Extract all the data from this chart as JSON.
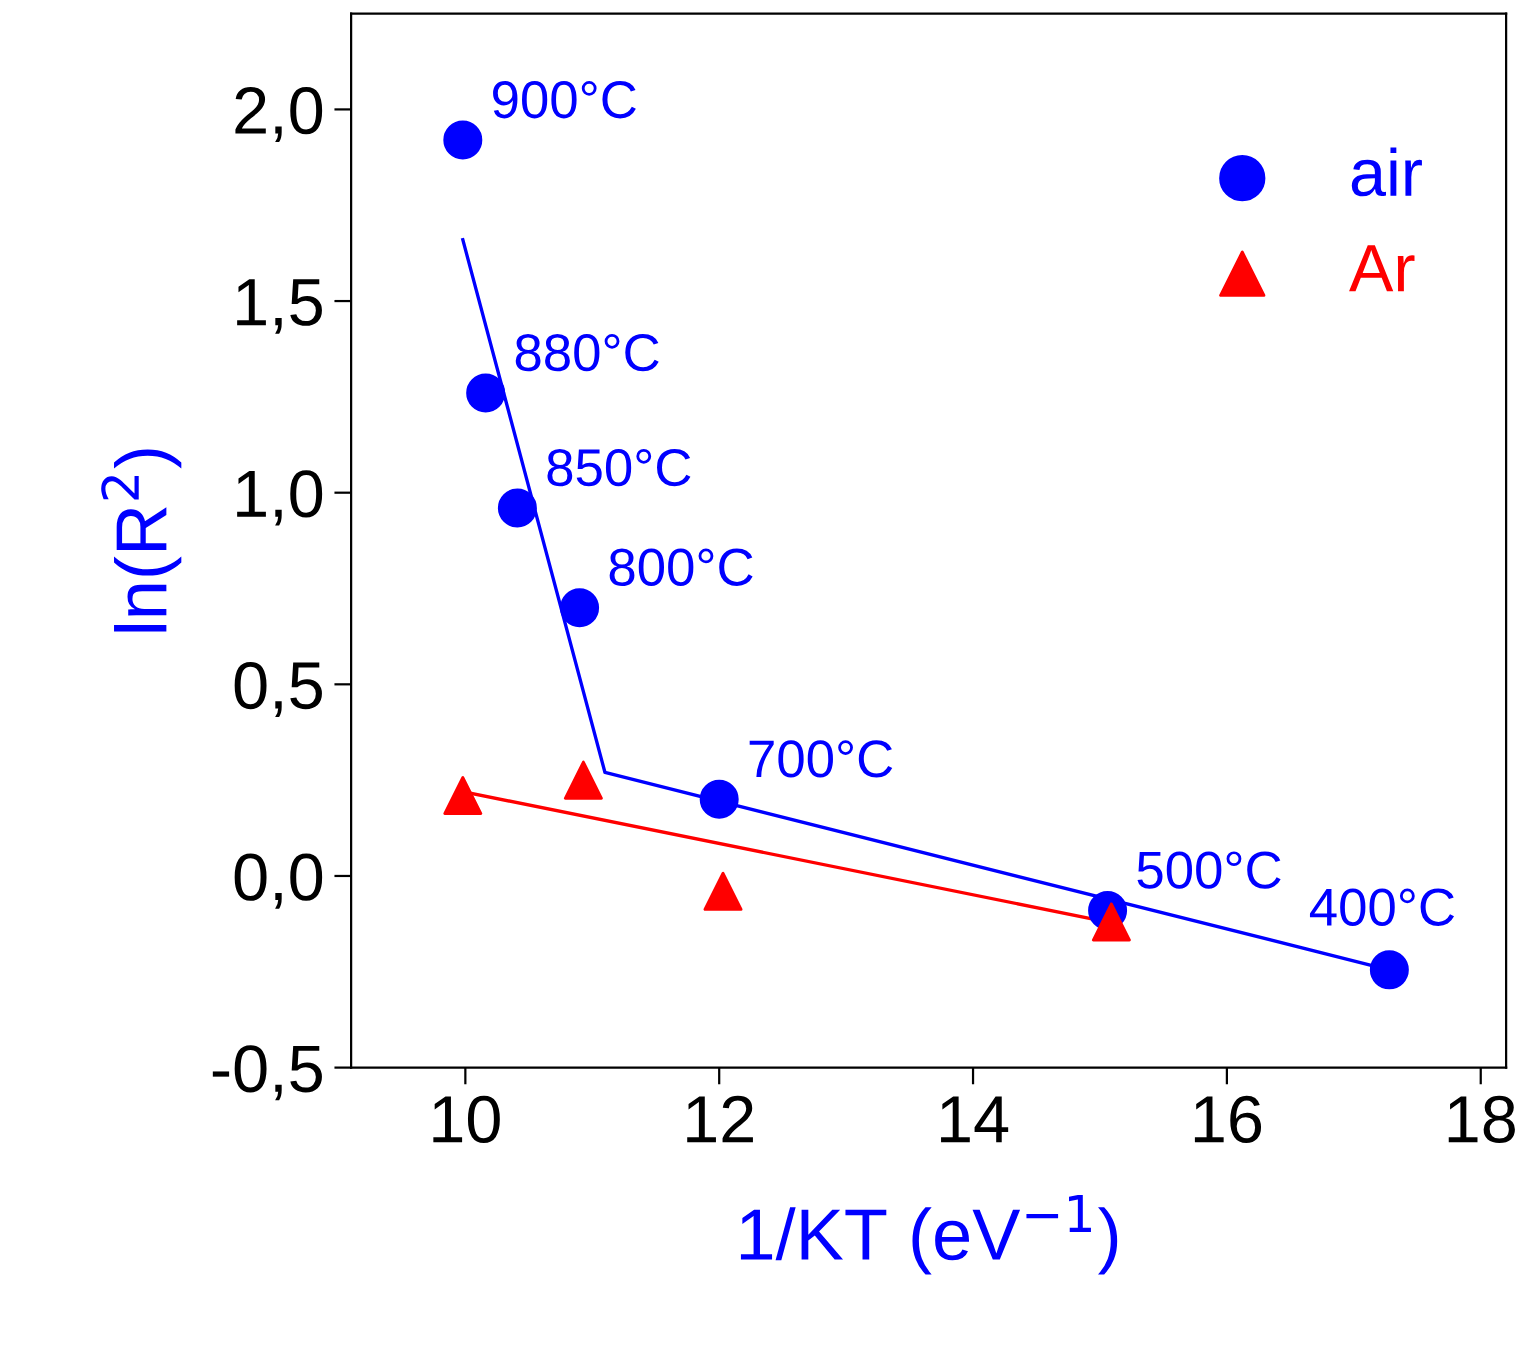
{
  "chart_data": {
    "type": "scatter",
    "xlabel": "1/KT (eV$^{−1}$)",
    "ylabel": "ln(R$^{2}$)",
    "xlim": [
      9.1,
      18.2
    ],
    "ylim": [
      -0.5,
      2.25
    ],
    "xticks": [
      10,
      12,
      14,
      16,
      18
    ],
    "yticks": [
      {
        "value": -0.5,
        "label": "-0,5"
      },
      {
        "value": 0.0,
        "label": "0,0"
      },
      {
        "value": 0.5,
        "label": "0,5"
      },
      {
        "value": 1.0,
        "label": "1,0"
      },
      {
        "value": 1.5,
        "label": "1,5"
      },
      {
        "value": 2.0,
        "label": "2,0"
      }
    ],
    "grid": false,
    "legend": "top right",
    "series": [
      {
        "name": "air",
        "marker": "circle",
        "color": "#0000ff",
        "x": [
          9.98,
          10.16,
          10.41,
          10.9,
          12.0,
          15.06,
          17.28
        ],
        "values": [
          1.92,
          1.26,
          0.96,
          0.7,
          0.2,
          -0.09,
          -0.245
        ]
      },
      {
        "name": "Ar",
        "marker": "triangle",
        "color": "#ff0000",
        "x": [
          9.98,
          10.93,
          12.03,
          15.09
        ],
        "values": [
          0.21,
          0.25,
          -0.04,
          -0.12
        ]
      },
      {
        "type": "line",
        "marker": "none",
        "line_style": "solid",
        "color": "#0000ff",
        "x": [
          9.98,
          11.1,
          17.28
        ],
        "values": [
          1.66,
          0.27,
          -0.245
        ]
      },
      {
        "type": "line",
        "marker": "none",
        "line_style": "solid",
        "color": "#ff0000",
        "x": [
          9.98,
          15.06
        ],
        "values": [
          0.22,
          -0.12
        ]
      }
    ],
    "annotations": [
      {
        "text": "900°C",
        "x": 9.98,
        "y": 1.92
      },
      {
        "text": "880°C",
        "x": 10.16,
        "y": 1.26
      },
      {
        "text": "850°C",
        "x": 10.41,
        "y": 0.96
      },
      {
        "text": "800°C",
        "x": 10.9,
        "y": 0.7
      },
      {
        "text": "700°C",
        "x": 12.0,
        "y": 0.2
      },
      {
        "text": "500°C",
        "x": 15.06,
        "y": -0.09
      },
      {
        "text": "400°C",
        "x": 17.28,
        "y": -0.245
      }
    ]
  }
}
